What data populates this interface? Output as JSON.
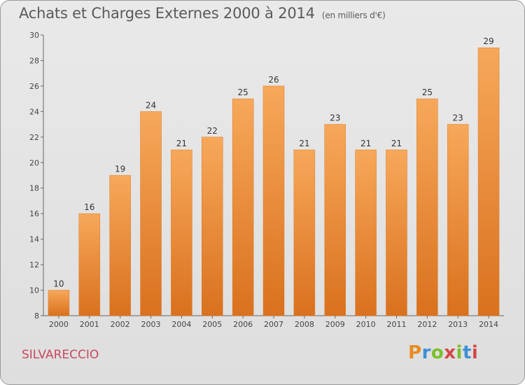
{
  "page": {
    "title": "Achats et Charges Externes 2000 à 2014",
    "unit": "(en milliers d'€)",
    "place": "SILVARECCIO",
    "brand": "Proxiti"
  },
  "chart_data": {
    "type": "bar",
    "title": "Achats et Charges Externes 2000 à 2014",
    "subtitle": "(en milliers d'€)",
    "categories": [
      "2000",
      "2001",
      "2002",
      "2003",
      "2004",
      "2005",
      "2006",
      "2007",
      "2008",
      "2009",
      "2010",
      "2011",
      "2012",
      "2013",
      "2014"
    ],
    "values": [
      10,
      16,
      19,
      24,
      21,
      22,
      25,
      26,
      21,
      23,
      21,
      21,
      25,
      23,
      29
    ],
    "ylim": [
      8,
      30
    ],
    "yticks": [
      8,
      10,
      12,
      14,
      16,
      18,
      20,
      22,
      24,
      26,
      28,
      30
    ],
    "grid": false,
    "bar_color": "#f08a2c"
  }
}
